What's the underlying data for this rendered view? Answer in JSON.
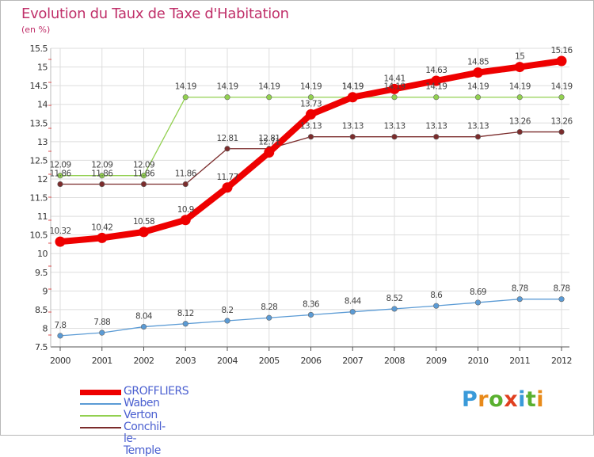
{
  "title": "Evolution du Taux de Taxe d'Habitation",
  "subtitle": "(en %)",
  "logo": {
    "text": "Proxiti",
    "letters": [
      "P",
      "r",
      "o",
      "x",
      "i",
      "t",
      "i"
    ],
    "colors": [
      "#3a9ad9",
      "#e88a1a",
      "#5ab030",
      "#e04020",
      "#3a9ad9",
      "#5ab030",
      "#e88a1a"
    ]
  },
  "chart_data": {
    "type": "line",
    "title": "Evolution du Taux de Taxe d'Habitation",
    "ylabel": "(en %)",
    "xlabel": "",
    "x": [
      "2000",
      "2001",
      "2002",
      "2003",
      "2004",
      "2005",
      "2006",
      "2007",
      "2008",
      "2009",
      "2010",
      "2011",
      "2012"
    ],
    "ylim": [
      7.5,
      15.5
    ],
    "yticks": [
      "7.5",
      "8",
      "8.5",
      "9",
      "9.5",
      "10",
      "10.5",
      "11",
      "11.5",
      "12",
      "12.5",
      "13",
      "13.5",
      "14",
      "14.5",
      "15",
      "15.5"
    ],
    "grid": true,
    "legend_position": "bottom-left",
    "series": [
      {
        "name": "GROFFLIERS",
        "color": "#ee0000",
        "values": [
          10.32,
          10.42,
          10.58,
          10.9,
          11.77,
          12.71,
          13.73,
          14.19,
          14.41,
          14.63,
          14.85,
          15,
          15.16
        ],
        "labels": [
          "10.32",
          "10.42",
          "10.58",
          "10.9",
          "11.77",
          "12.71",
          "13.73",
          "14.19",
          "14.41",
          "14.63",
          "14.85",
          "15",
          "15.16"
        ]
      },
      {
        "name": "Waben",
        "color": "#5b9bd5",
        "values": [
          7.8,
          7.88,
          8.04,
          8.12,
          8.2,
          8.28,
          8.36,
          8.44,
          8.52,
          8.6,
          8.69,
          8.78,
          8.78
        ],
        "labels": [
          "7.8",
          "7.88",
          "8.04",
          "8.12",
          "8.2",
          "8.28",
          "8.36",
          "8.44",
          "8.52",
          "8.6",
          "8.69",
          "8.78",
          "8.78"
        ]
      },
      {
        "name": "Verton",
        "color": "#92d050",
        "values": [
          12.09,
          12.09,
          12.09,
          14.19,
          14.19,
          14.19,
          14.19,
          14.19,
          14.19,
          14.19,
          14.19,
          14.19,
          14.19
        ],
        "labels": [
          "12.09",
          "12.09",
          "12.09",
          "14.19",
          "14.19",
          "14.19",
          "14.19",
          "14.19",
          "14.19",
          "14.19",
          "14.19",
          "14.19",
          "14.19"
        ]
      },
      {
        "name": "Conchil-le-Temple",
        "color": "#7b2c2c",
        "values": [
          11.86,
          11.86,
          11.86,
          11.86,
          12.81,
          12.81,
          13.13,
          13.13,
          13.13,
          13.13,
          13.13,
          13.26,
          13.26
        ],
        "labels": [
          "11.86",
          "11.86",
          "11.86",
          "11.86",
          "12.81",
          "12.81",
          "13.13",
          "13.13",
          "13.13",
          "13.13",
          "13.13",
          "13.26",
          "13.26"
        ]
      }
    ]
  }
}
